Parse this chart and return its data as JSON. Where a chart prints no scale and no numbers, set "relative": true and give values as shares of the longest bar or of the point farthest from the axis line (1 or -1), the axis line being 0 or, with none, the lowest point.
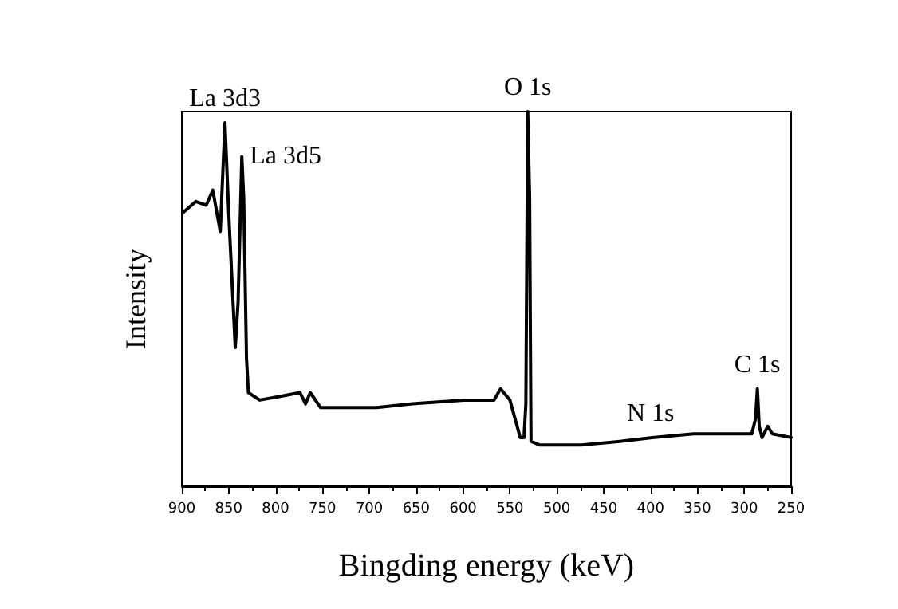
{
  "chart_data": {
    "type": "line",
    "xlabel": "Bingding energy (keV)",
    "ylabel": "Intensity",
    "relative": true,
    "xlim": [
      900,
      250
    ],
    "xticks": [
      900,
      850,
      800,
      750,
      700,
      650,
      600,
      550,
      500,
      450,
      400,
      350,
      300,
      250
    ],
    "marker": "none",
    "line_style": "solid",
    "series": [
      {
        "color": "#000000",
        "x": [
          899,
          885,
          874,
          867,
          859,
          854,
          850,
          843,
          840,
          836,
          834,
          831,
          829,
          817,
          795,
          774,
          768,
          763,
          752,
          708,
          692,
          654,
          599,
          583,
          567,
          560,
          550,
          539,
          535,
          533,
          531,
          529,
          527.5,
          518,
          474,
          431,
          398,
          354,
          311,
          292,
          288,
          286,
          284,
          281,
          275,
          270,
          250
        ],
        "values": [
          0.73,
          0.76,
          0.75,
          0.79,
          0.68,
          0.97,
          0.73,
          0.37,
          0.49,
          0.88,
          0.77,
          0.34,
          0.25,
          0.23,
          0.24,
          0.25,
          0.22,
          0.25,
          0.21,
          0.21,
          0.21,
          0.22,
          0.23,
          0.23,
          0.23,
          0.26,
          0.23,
          0.13,
          0.13,
          0.22,
          1.0,
          0.77,
          0.12,
          0.11,
          0.11,
          0.12,
          0.13,
          0.14,
          0.14,
          0.14,
          0.18,
          0.26,
          0.16,
          0.13,
          0.16,
          0.14,
          0.13
        ]
      }
    ],
    "annotations": [
      {
        "text": "La 3d3",
        "x": 854,
        "y": 0.97
      },
      {
        "text": "La 3d5",
        "x": 836,
        "y": 0.88
      },
      {
        "text": "O 1s",
        "x": 531,
        "y": 1.0
      },
      {
        "text": "N 1s",
        "x": 400,
        "y": 0.13
      },
      {
        "text": "C 1s",
        "x": 286,
        "y": 0.26
      }
    ]
  }
}
